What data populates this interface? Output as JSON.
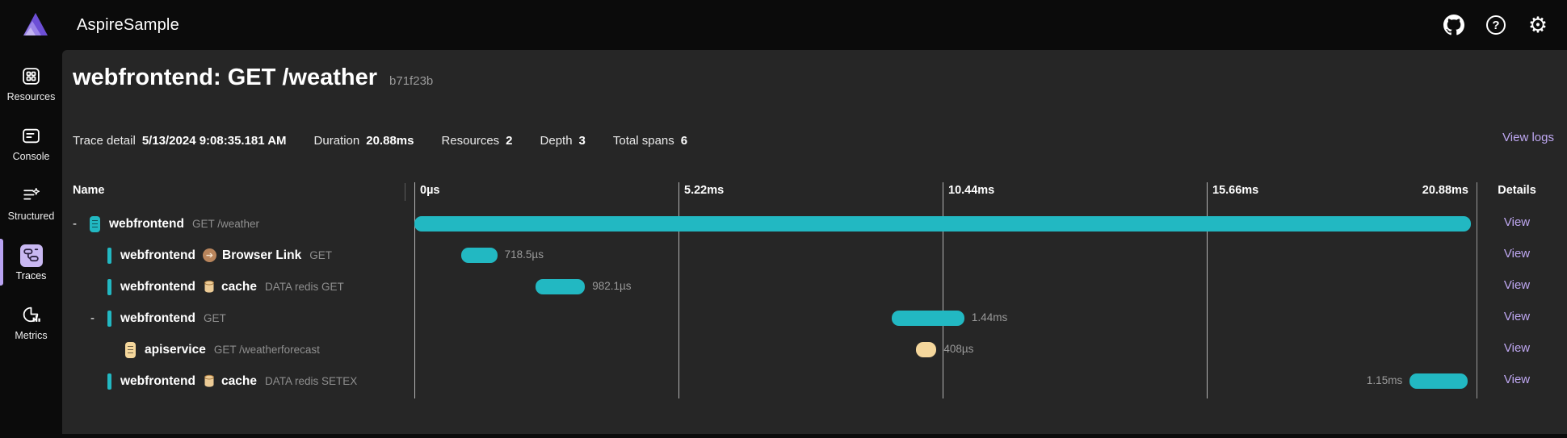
{
  "app": {
    "title": "AspireSample"
  },
  "topbar": {
    "icons": [
      "github-icon",
      "help-icon",
      "settings-icon"
    ]
  },
  "sidebar": {
    "items": [
      {
        "label": "Resources",
        "active": false
      },
      {
        "label": "Console",
        "active": false
      },
      {
        "label": "Structured",
        "active": false
      },
      {
        "label": "Traces",
        "active": true
      },
      {
        "label": "Metrics",
        "active": false
      }
    ]
  },
  "page": {
    "title": "webfrontend: GET /weather",
    "trace_id": "b71f23b",
    "view_logs_label": "View logs"
  },
  "summary": {
    "items": [
      {
        "label": "Trace detail",
        "value": "5/13/2024 9:08:35.181 AM"
      },
      {
        "label": "Duration",
        "value": "20.88ms"
      },
      {
        "label": "Resources",
        "value": "2"
      },
      {
        "label": "Depth",
        "value": "3"
      },
      {
        "label": "Total spans",
        "value": "6"
      }
    ]
  },
  "waterfall": {
    "name_header": "Name",
    "details_header": "Details",
    "ticks": [
      "0µs",
      "5.22ms",
      "10.44ms",
      "15.66ms",
      "20.88ms"
    ],
    "total_ms": 20.88,
    "rows": [
      {
        "level": 0,
        "toggle": "-",
        "icon": "resource-pill",
        "icon_color": "teal",
        "name": "webfrontend",
        "kind_label": "",
        "detail": "GET /weather",
        "bar": {
          "start_ms": 0,
          "duration_ms": 20.88,
          "color": "teal",
          "label": "",
          "label_side": "right"
        },
        "details_link": "View"
      },
      {
        "level": 1,
        "toggle": "",
        "icon": "resource-bar",
        "icon_color": "teal",
        "name": "webfrontend",
        "kind_icon": "browser-link",
        "kind_label": "Browser Link",
        "detail": "GET",
        "bar": {
          "start_ms": 0.92,
          "duration_ms": 0.7185,
          "color": "teal",
          "label": "718.5µs",
          "label_side": "right"
        },
        "details_link": "View"
      },
      {
        "level": 1,
        "toggle": "",
        "icon": "resource-bar",
        "icon_color": "teal",
        "name": "webfrontend",
        "kind_icon": "database",
        "kind_label": "cache",
        "detail": "DATA redis GET",
        "bar": {
          "start_ms": 2.39,
          "duration_ms": 0.9821,
          "color": "teal",
          "label": "982.1µs",
          "label_side": "right"
        },
        "details_link": "View"
      },
      {
        "level": 1,
        "toggle": "-",
        "icon": "resource-bar",
        "icon_color": "teal",
        "name": "webfrontend",
        "kind_label": "",
        "detail": "GET",
        "bar": {
          "start_ms": 9.43,
          "duration_ms": 1.44,
          "color": "teal",
          "label": "1.44ms",
          "label_side": "right"
        },
        "details_link": "View"
      },
      {
        "level": 2,
        "toggle": "",
        "icon": "resource-pill",
        "icon_color": "yellow",
        "name": "apiservice",
        "kind_label": "",
        "detail": "GET /weatherforecast",
        "bar": {
          "start_ms": 9.91,
          "duration_ms": 0.408,
          "color": "yellow",
          "label": "408µs",
          "label_side": "right"
        },
        "details_link": "View"
      },
      {
        "level": 1,
        "toggle": "",
        "icon": "resource-bar",
        "icon_color": "teal",
        "name": "webfrontend",
        "kind_icon": "database",
        "kind_label": "cache",
        "detail": "DATA redis SETEX",
        "bar": {
          "start_ms": 19.67,
          "duration_ms": 1.15,
          "color": "teal",
          "label": "1.15ms",
          "label_side": "left"
        },
        "details_link": "View"
      }
    ]
  },
  "colors": {
    "teal": "#22b8c2",
    "yellow": "#f5d79c",
    "link": "#bfa8f2",
    "accent": "#b9a3f2",
    "accent_bg": "#c9b8f2"
  }
}
